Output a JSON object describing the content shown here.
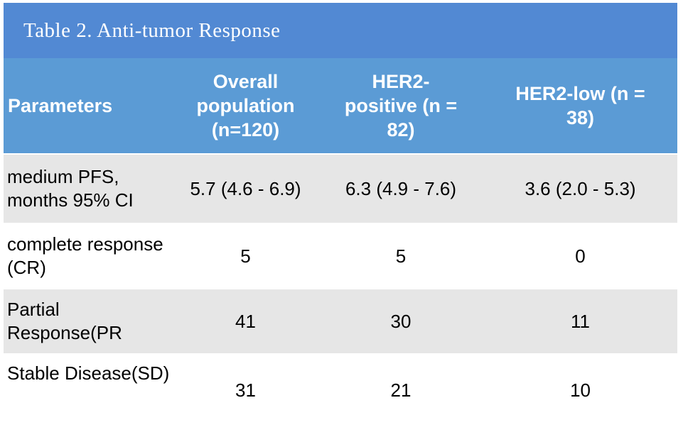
{
  "table": {
    "title": "Table 2. Anti-tumor Response",
    "columns": [
      {
        "id": "parameters",
        "lines": [
          "Parameters"
        ]
      },
      {
        "id": "overall-population",
        "lines": [
          "Overall",
          "population",
          "(n=120)"
        ]
      },
      {
        "id": "her2-positive",
        "lines": [
          "HER2-",
          "positive (n =",
          "82)"
        ]
      },
      {
        "id": "her2-low",
        "lines": [
          "HER2-low (n =",
          "38)"
        ]
      }
    ],
    "rows": [
      {
        "label_lines": [
          "medium PFS,",
          "months 95% CI"
        ],
        "values": [
          "5.7 (4.6 - 6.9)",
          "6.3 (4.9 - 7.6)",
          "3.6 (2.0 - 5.3)"
        ]
      },
      {
        "label_lines": [
          "complete response",
          "(CR)"
        ],
        "values": [
          "5",
          "5",
          "0"
        ]
      },
      {
        "label_lines": [
          "Partial",
          "Response(PR"
        ],
        "values": [
          "41",
          "30",
          "11"
        ]
      },
      {
        "label_lines": [
          "Stable Disease(SD)"
        ],
        "values": [
          "31",
          "21",
          "10"
        ]
      }
    ],
    "colors": {
      "title_bar_bg": "#5289d3",
      "header_bg": "#5b9bd5",
      "band_gray": "#e6e6e6",
      "row_white": "#ffffff",
      "header_text": "#ffffff",
      "body_text": "#000000",
      "page_bg": "#ffffff"
    }
  }
}
